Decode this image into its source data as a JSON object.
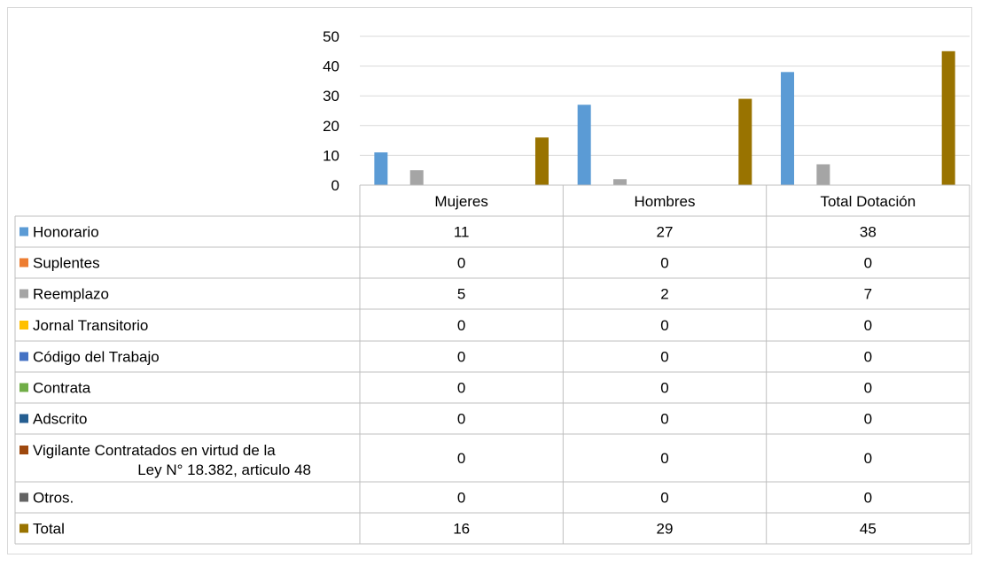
{
  "chart_data": {
    "type": "bar",
    "title": "",
    "xlabel": "",
    "ylabel": "",
    "ylim": [
      0,
      50
    ],
    "yticks": [
      0,
      10,
      20,
      30,
      40,
      50
    ],
    "grid": true,
    "legend": "data-table",
    "categories": [
      "Mujeres",
      "Hombres",
      "Total Dotación"
    ],
    "series": [
      {
        "name": "Honorario",
        "values": [
          11,
          27,
          38
        ],
        "color": "#5b9bd5"
      },
      {
        "name": "Suplentes",
        "values": [
          0,
          0,
          0
        ],
        "color": "#ed7d31"
      },
      {
        "name": "Reemplazo",
        "values": [
          5,
          2,
          7
        ],
        "color": "#a5a5a5"
      },
      {
        "name": "Jornal Transitorio",
        "values": [
          0,
          0,
          0
        ],
        "color": "#ffc000"
      },
      {
        "name": "Código del Trabajo",
        "values": [
          0,
          0,
          0
        ],
        "color": "#4472c4"
      },
      {
        "name": "Contrata",
        "values": [
          0,
          0,
          0
        ],
        "color": "#70ad47"
      },
      {
        "name": "Adscrito",
        "values": [
          0,
          0,
          0
        ],
        "color": "#255e91"
      },
      {
        "name": "Vigilante Contratados en virtud de la Ley N° 18.382, articulo 48",
        "values": [
          0,
          0,
          0
        ],
        "color": "#9e480e"
      },
      {
        "name": "Otros.",
        "values": [
          0,
          0,
          0
        ],
        "color": "#636363"
      },
      {
        "name": "Total",
        "values": [
          16,
          29,
          45
        ],
        "color": "#997300"
      }
    ]
  }
}
